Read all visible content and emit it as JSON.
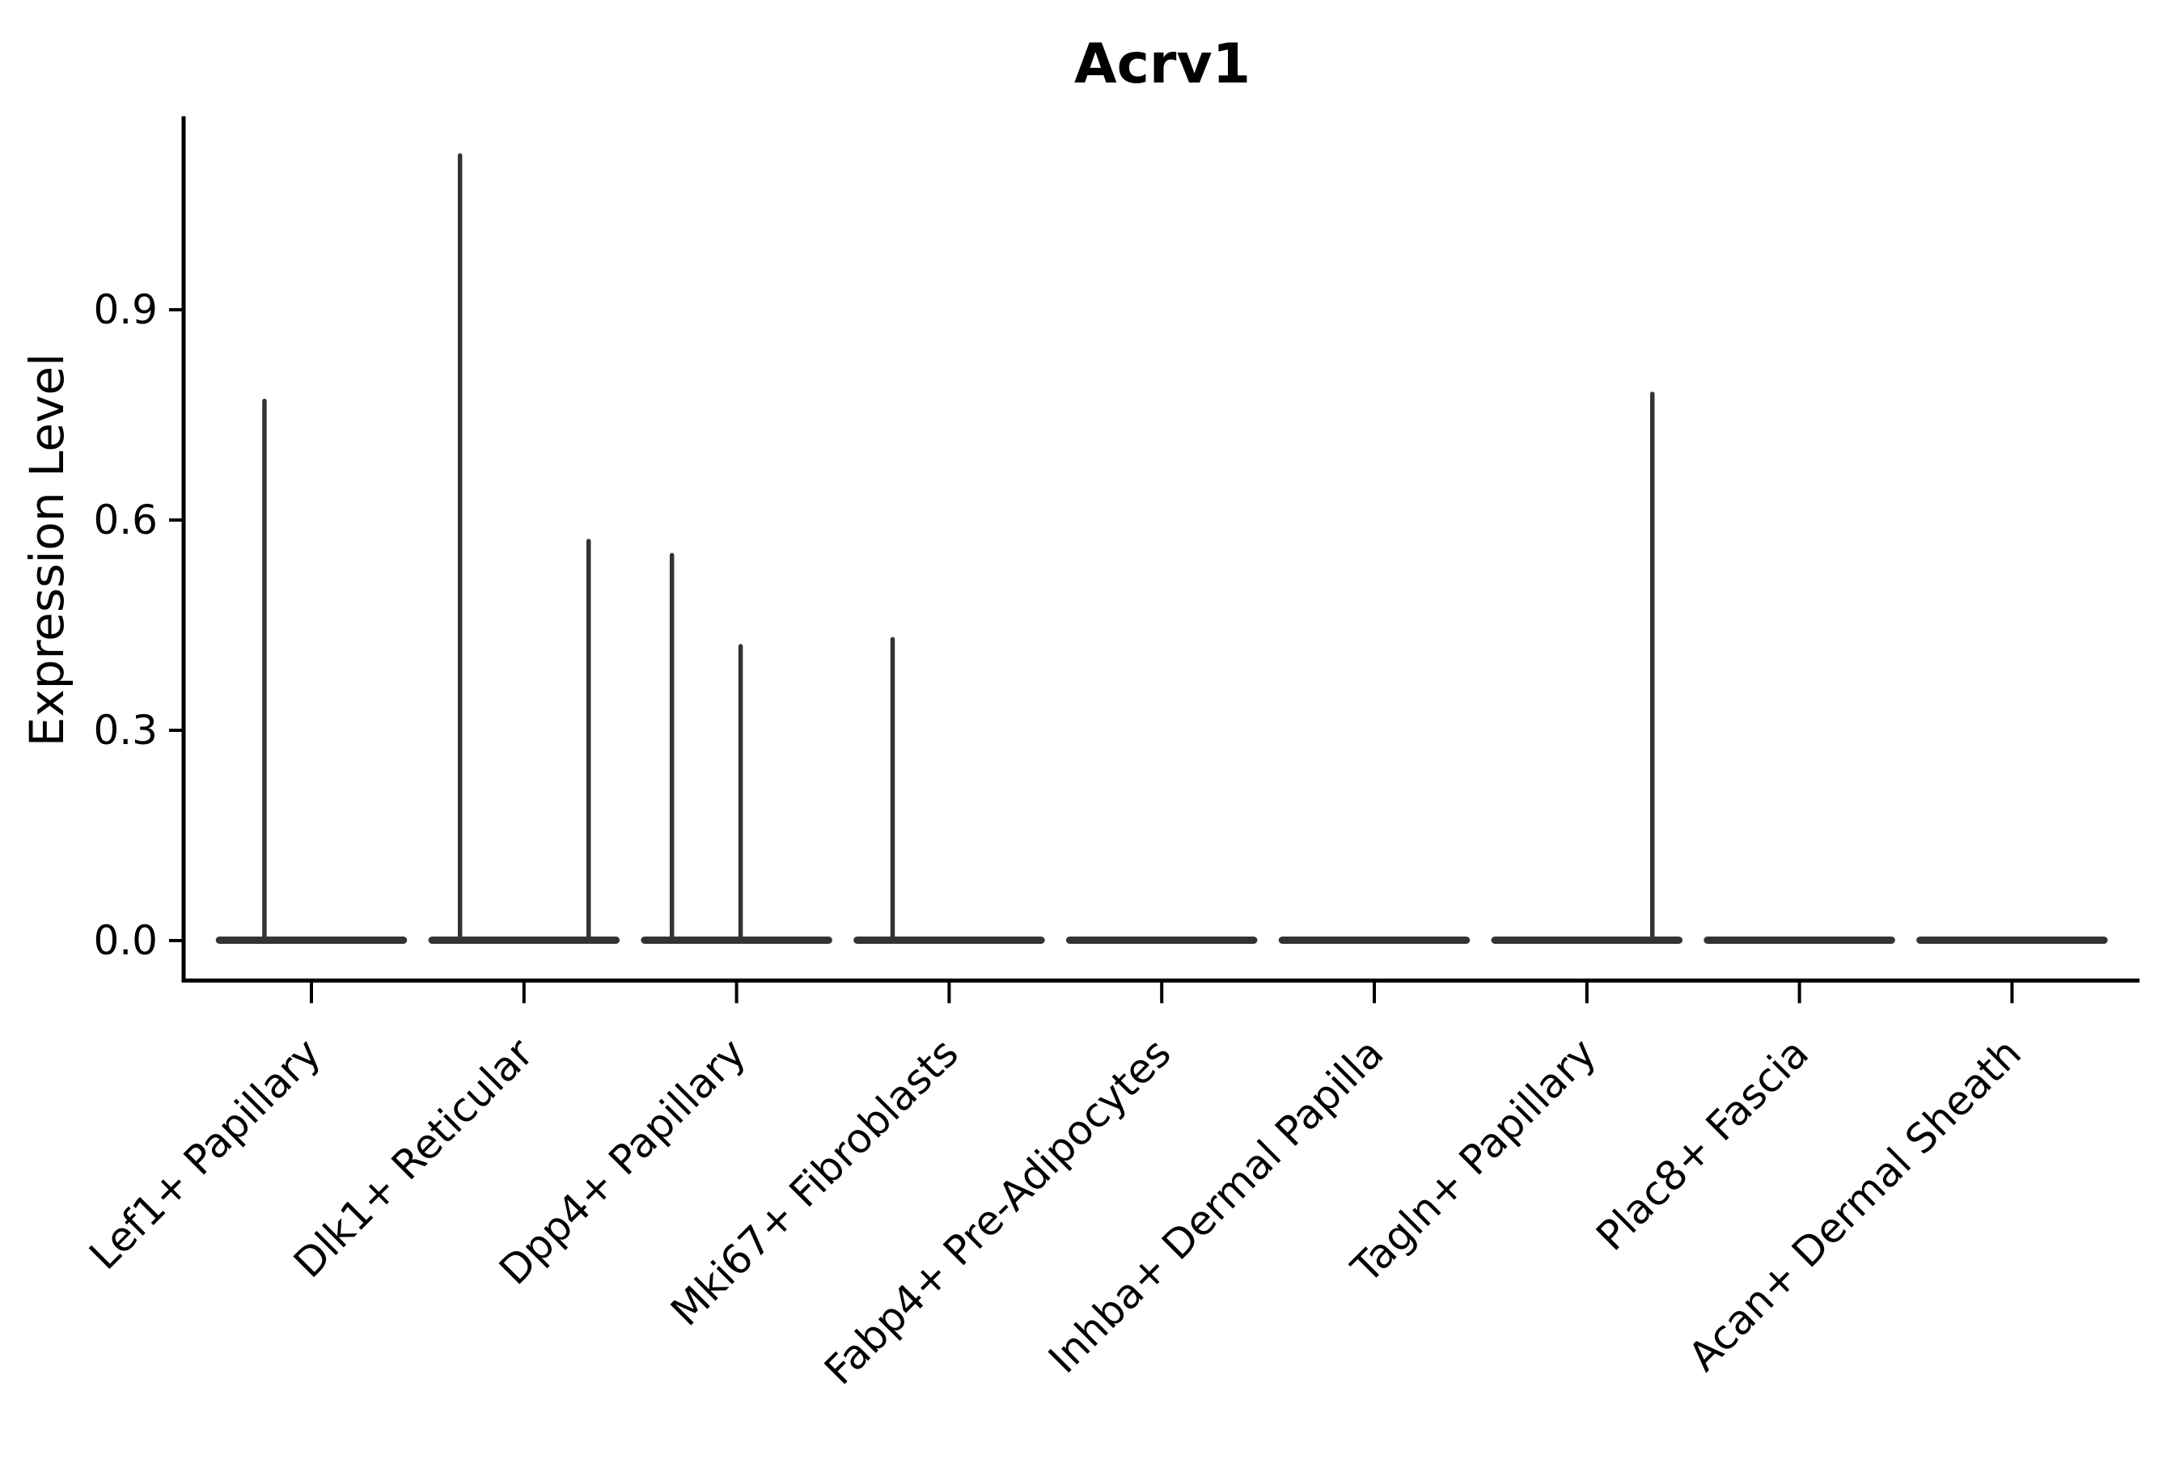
{
  "chart_data": {
    "type": "violin",
    "title": "Acrv1",
    "xlabel": "",
    "ylabel": "Expression Level",
    "yticks": [
      0.0,
      0.3,
      0.6,
      0.9
    ],
    "ylim": [
      -0.057,
      1.176
    ],
    "grid": false,
    "legend": "none",
    "violin_width_frac": 0.9,
    "description": "Violin plot of Acrv1 expression per cluster; each cluster shows a flat density mass at 0 with thin vertical density spikes at the expression values of the few positive cells.",
    "categories": [
      "Lef1+ Papillary",
      "Dlk1+ Reticular",
      "Dpp4+ Papillary",
      "Mki67+ Fibroblasts",
      "Fabp4+ Pre-Adipocytes",
      "Inhba+ Dermal Papilla",
      "Tagln+ Papillary",
      "Plac8+ Fascia",
      "Acan+ Dermal Sheath"
    ],
    "series": [
      {
        "name": "Lef1+ Papillary",
        "zero_mass": true,
        "spikes": [
          {
            "offset_frac": -0.221,
            "value": 0.77
          }
        ]
      },
      {
        "name": "Dlk1+ Reticular",
        "zero_mass": true,
        "spikes": [
          {
            "offset_frac": -0.301,
            "value": 1.12
          },
          {
            "offset_frac": 0.304,
            "value": 0.57
          }
        ]
      },
      {
        "name": "Dpp4+ Papillary",
        "zero_mass": true,
        "spikes": [
          {
            "offset_frac": -0.304,
            "value": 0.55
          },
          {
            "offset_frac": 0.019,
            "value": 0.42
          }
        ]
      },
      {
        "name": "Mki67+ Fibroblasts",
        "zero_mass": true,
        "spikes": [
          {
            "offset_frac": -0.266,
            "value": 0.43
          }
        ]
      },
      {
        "name": "Fabp4+ Pre-Adipocytes",
        "zero_mass": true,
        "spikes": []
      },
      {
        "name": "Inhba+ Dermal Papilla",
        "zero_mass": true,
        "spikes": []
      },
      {
        "name": "Tagln+ Papillary",
        "zero_mass": true,
        "spikes": [
          {
            "offset_frac": 0.308,
            "value": 0.78
          }
        ]
      },
      {
        "name": "Plac8+ Fascia",
        "zero_mass": true,
        "spikes": []
      },
      {
        "name": "Acan+ Dermal Sheath",
        "zero_mass": true,
        "spikes": []
      }
    ],
    "colors": {
      "violin_stroke": "#333333",
      "axis": "#000000",
      "text": "#000000",
      "background": "#ffffff"
    }
  }
}
